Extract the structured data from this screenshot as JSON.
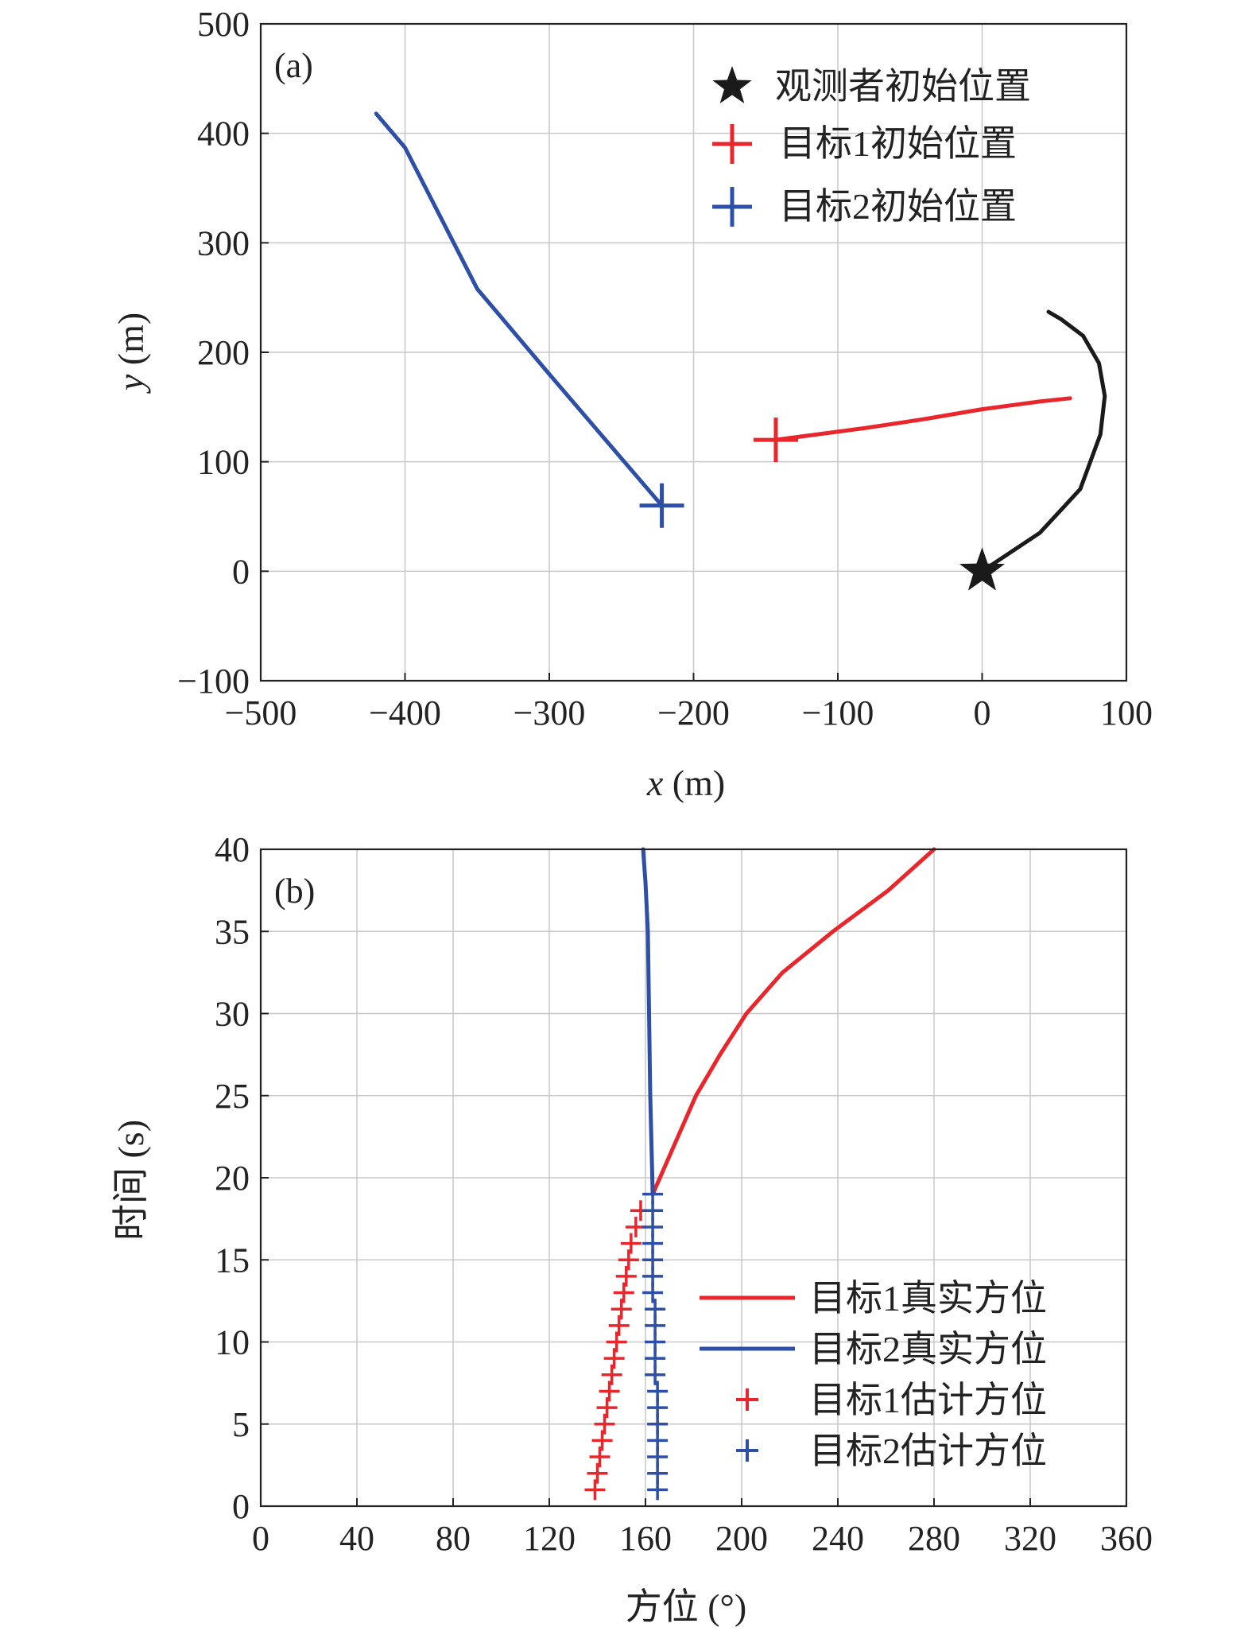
{
  "chart_data": [
    {
      "type": "line",
      "panel_label": "(a)",
      "xlabel_var": "x",
      "xlabel_unit": " (m)",
      "ylabel_var": "y",
      "ylabel_unit": " (m)",
      "xlim": [
        -500,
        100
      ],
      "ylim": [
        -100,
        500
      ],
      "xticks": [
        -500,
        -400,
        -300,
        -200,
        -100,
        0,
        100
      ],
      "yticks": [
        -100,
        0,
        100,
        200,
        300,
        400,
        500
      ],
      "xtick_labels": [
        "−500",
        "−400",
        "−300",
        "−200",
        "−100",
        "0",
        "100"
      ],
      "ytick_labels": [
        "−100",
        "0",
        "100",
        "200",
        "300",
        "400",
        "500"
      ],
      "grid": true,
      "legend_position": "top-right",
      "series": [
        {
          "name": "观测者初始位置",
          "color": "#1a1a1a",
          "marker": "star",
          "start": [
            0,
            0
          ],
          "x": [
            0,
            40,
            68,
            82,
            85,
            81,
            70,
            55,
            46
          ],
          "y": [
            0,
            35,
            75,
            125,
            160,
            190,
            215,
            230,
            237
          ]
        },
        {
          "name": "目标1初始位置",
          "color": "#e8262b",
          "marker": "plus",
          "start": [
            -143,
            120
          ],
          "x": [
            -143,
            -120,
            -80,
            -40,
            0,
            40,
            61
          ],
          "y": [
            120,
            124,
            131,
            139,
            148,
            155,
            158
          ]
        },
        {
          "name": "目标2初始位置",
          "color": "#2e4fa8",
          "marker": "plus",
          "start": [
            -222,
            60
          ],
          "x": [
            -222,
            -250,
            -300,
            -350,
            -400,
            -420
          ],
          "y": [
            60,
            103,
            180,
            258,
            387,
            418
          ]
        }
      ]
    },
    {
      "type": "line",
      "panel_label": "(b)",
      "xlabel": "方位 (°)",
      "ylabel": "时间 (s)",
      "xlim": [
        0,
        360
      ],
      "ylim": [
        0,
        40
      ],
      "xticks": [
        0,
        40,
        80,
        120,
        160,
        200,
        240,
        280,
        320,
        360
      ],
      "yticks": [
        0,
        5,
        10,
        15,
        20,
        25,
        30,
        35,
        40
      ],
      "grid": true,
      "legend_position": "bottom-right",
      "series": [
        {
          "name": "目标1真实方位",
          "color": "#e8262b",
          "style": "line",
          "x": [
            163,
            172,
            181,
            191,
            202,
            217,
            238,
            261,
            280
          ],
          "y": [
            19,
            22,
            25,
            27.5,
            30,
            32.5,
            35,
            37.5,
            40
          ]
        },
        {
          "name": "目标2真实方位",
          "color": "#2e4fa8",
          "style": "line",
          "x": [
            163,
            162,
            161.5,
            161,
            160,
            159
          ],
          "y": [
            19,
            25,
            30,
            35,
            38,
            40
          ]
        },
        {
          "name": "目标1估计方位",
          "color": "#e8262b",
          "style": "plus",
          "x": [
            139,
            140,
            141,
            142,
            143,
            144,
            145,
            146,
            147,
            148,
            149,
            150,
            151,
            152,
            153,
            154,
            156,
            158
          ],
          "y": [
            1,
            2,
            3,
            4,
            5,
            6,
            7,
            8,
            9,
            10,
            11,
            12,
            13,
            14,
            15,
            16,
            17,
            18
          ]
        },
        {
          "name": "目标2估计方位",
          "color": "#2e4fa8",
          "style": "plus",
          "x": [
            165,
            165,
            165,
            165,
            165,
            165,
            165,
            164,
            164,
            164,
            164,
            164,
            163,
            163,
            163,
            163,
            163,
            163,
            163
          ],
          "y": [
            1,
            2,
            3,
            4,
            5,
            6,
            7,
            8,
            9,
            10,
            11,
            12,
            13,
            14,
            15,
            16,
            17,
            18,
            19
          ]
        }
      ]
    }
  ]
}
